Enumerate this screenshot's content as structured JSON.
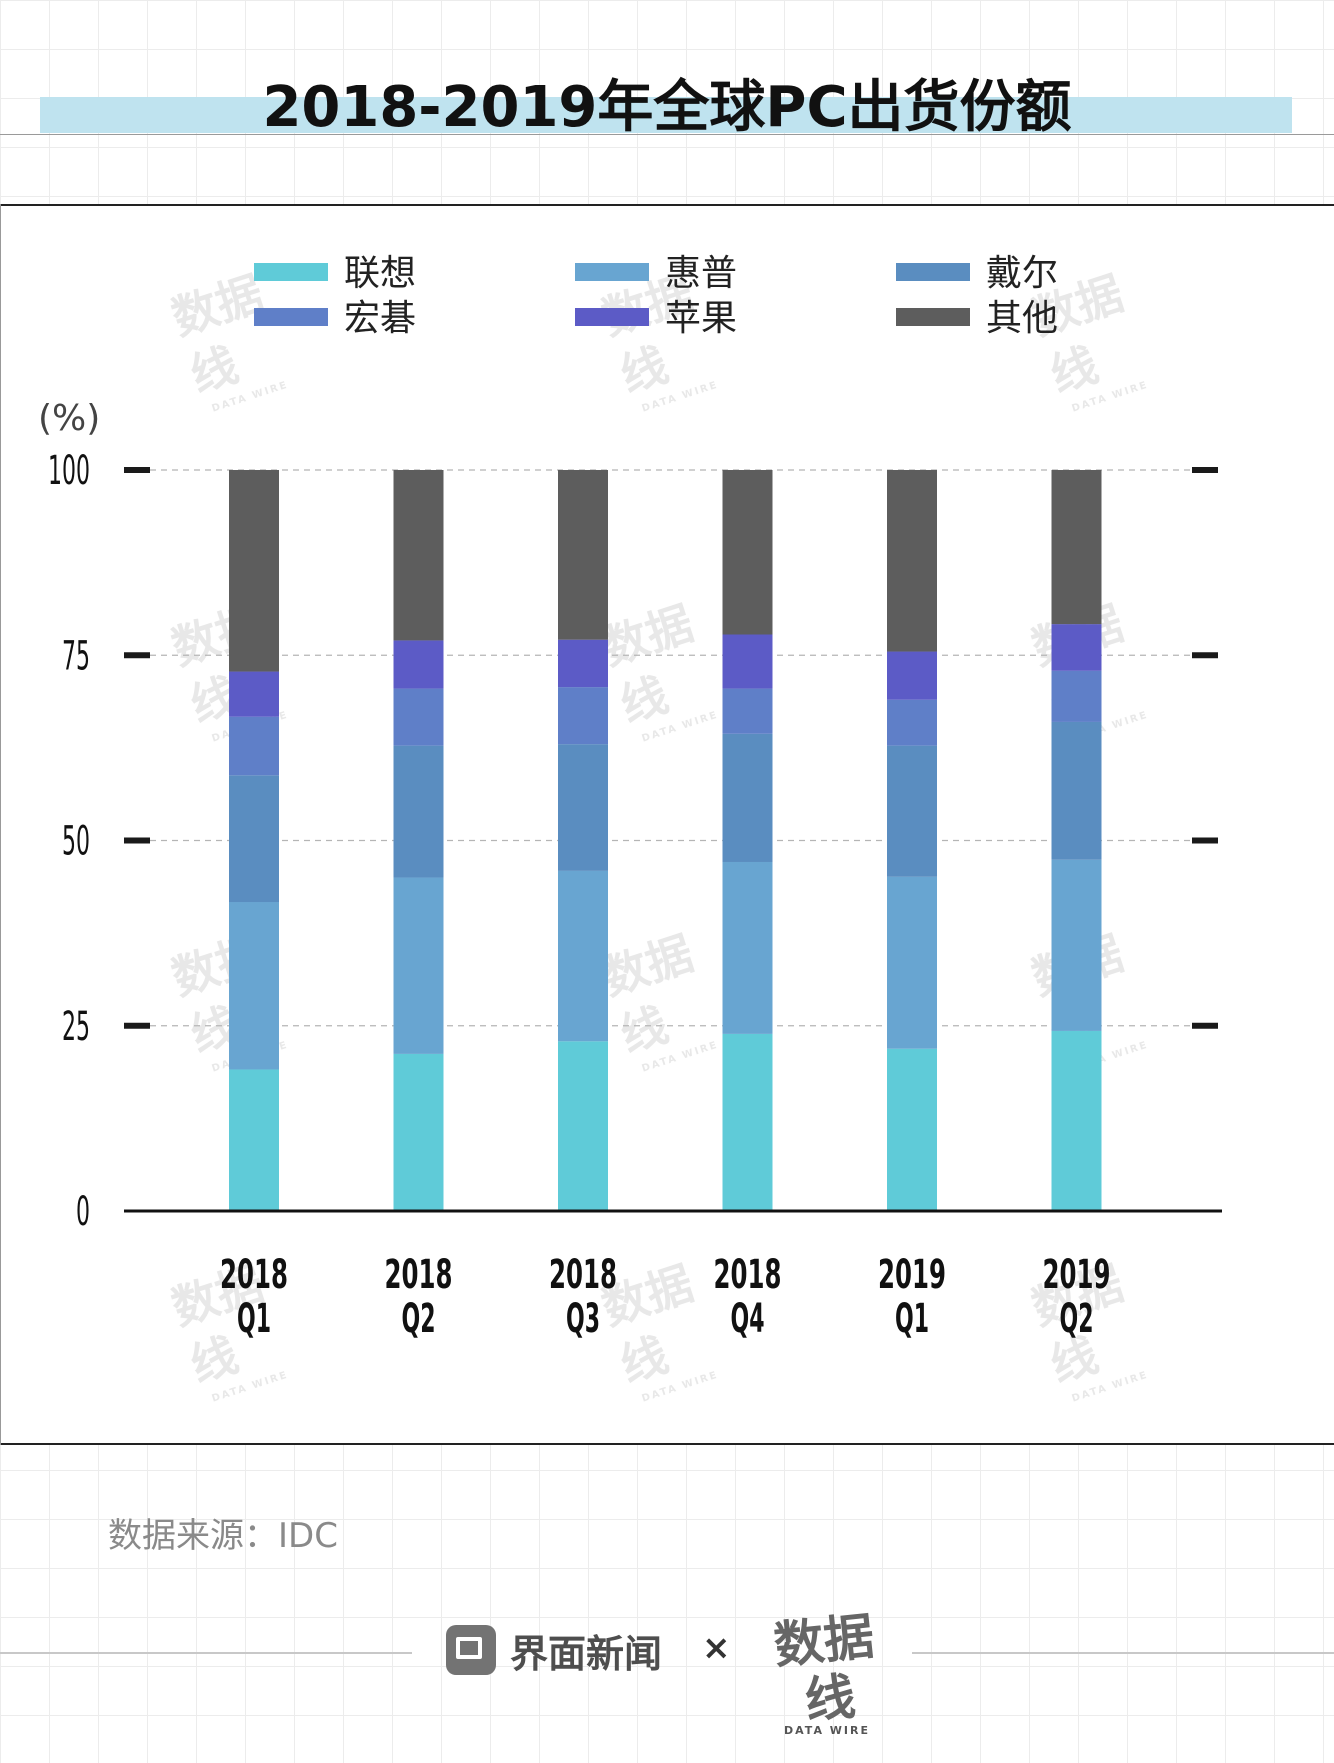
{
  "title": "2018-2019年全球PC出货份额",
  "source": "数据来源：IDC",
  "footer": {
    "brand": "界面新闻",
    "times": "×",
    "partner": "数据线",
    "partner_sub": "DATA WIRE"
  },
  "watermark": {
    "text": "数据线",
    "sub": "DATA WIRE"
  },
  "colors": {
    "title_band": "#bfe3ef",
    "联想": "#5fcbd8",
    "惠普": "#68a5d1",
    "戴尔": "#5a8dc0",
    "宏碁": "#5f7fc8",
    "苹果": "#5c5bc6",
    "其他": "#5d5d5d"
  },
  "chart_data": {
    "type": "bar",
    "stacked": true,
    "title": "2018-2019年全球PC出货份额",
    "ylabel": "(%)",
    "xlabel": "",
    "ylim": [
      0,
      100
    ],
    "yticks": [
      "0",
      "25",
      "50",
      "75",
      "100"
    ],
    "grid": true,
    "legend_position": "top",
    "categories": [
      "2018 Q1",
      "2018 Q2",
      "2018 Q3",
      "2018 Q4",
      "2019 Q1",
      "2019 Q2"
    ],
    "category_labels": [
      [
        "2018",
        "Q1"
      ],
      [
        "2018",
        "Q2"
      ],
      [
        "2018",
        "Q3"
      ],
      [
        "2018",
        "Q4"
      ],
      [
        "2019",
        "Q1"
      ],
      [
        "2019",
        "Q2"
      ]
    ],
    "legend_order": [
      "联想",
      "惠普",
      "戴尔",
      "宏碁",
      "苹果",
      "其他"
    ],
    "series": [
      {
        "name": "联想",
        "values": [
          19.1,
          21.2,
          22.9,
          23.9,
          21.9,
          24.3
        ]
      },
      {
        "name": "惠普",
        "values": [
          22.6,
          23.8,
          23.0,
          23.2,
          23.2,
          23.1
        ]
      },
      {
        "name": "戴尔",
        "values": [
          17.1,
          17.8,
          17.1,
          17.3,
          17.7,
          18.6
        ]
      },
      {
        "name": "宏碁",
        "values": [
          7.9,
          7.7,
          7.7,
          6.1,
          6.2,
          6.9
        ]
      },
      {
        "name": "苹果",
        "values": [
          6.1,
          6.5,
          6.4,
          7.3,
          6.5,
          6.3
        ]
      },
      {
        "name": "其他",
        "values": [
          27.2,
          23.0,
          22.9,
          22.2,
          24.5,
          20.8
        ]
      }
    ]
  }
}
